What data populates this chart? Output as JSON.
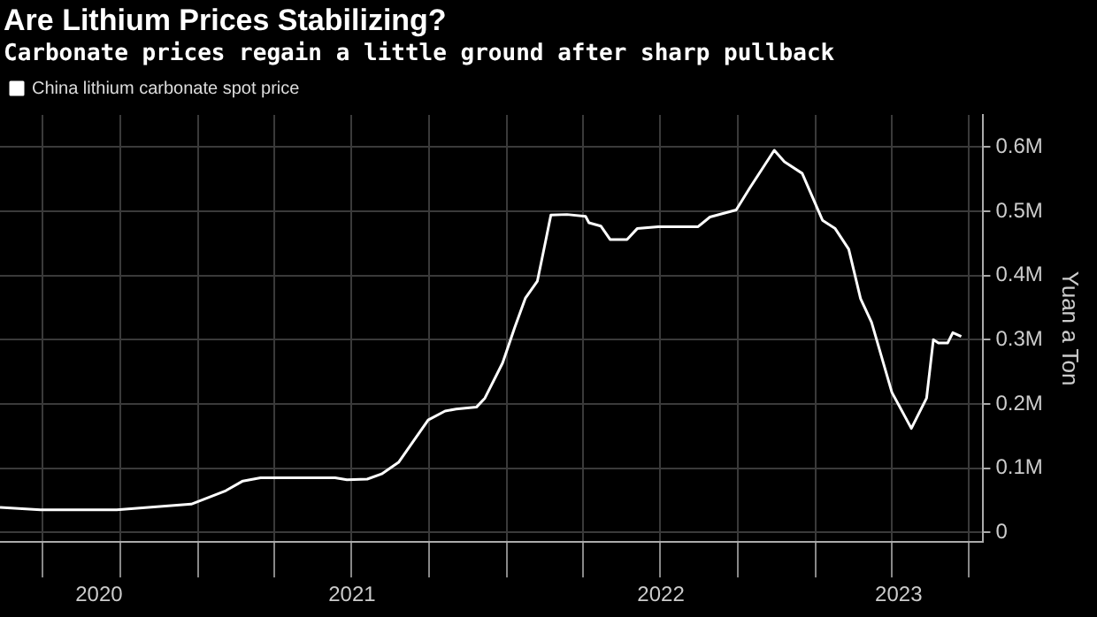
{
  "chart_data": {
    "type": "line",
    "title": "Are Lithium Prices Stabilizing?",
    "subtitle": "Carbonate prices regain a little ground after sharp pullback",
    "ylabel": "Yuan a Ton",
    "legend": "top left",
    "grid": true,
    "marker": "none",
    "line_style": "solid",
    "xlim": [
      "2020-05-12",
      "2023-07-18"
    ],
    "xticks": [
      {
        "value": "2020-07-01",
        "label": null
      },
      {
        "value": "2020-09-06",
        "label": "2020"
      },
      {
        "value": "2020-10-01",
        "label": null
      },
      {
        "value": "2021-01-01",
        "label": null
      },
      {
        "value": "2021-04-01",
        "label": null
      },
      {
        "value": "2021-07-02",
        "label": "2021"
      },
      {
        "value": "2021-07-01",
        "label": null
      },
      {
        "value": "2021-10-01",
        "label": null
      },
      {
        "value": "2022-01-01",
        "label": null
      },
      {
        "value": "2022-04-01",
        "label": null
      },
      {
        "value": "2022-07-02",
        "label": "2022"
      },
      {
        "value": "2022-07-01",
        "label": null
      },
      {
        "value": "2022-10-01",
        "label": null
      },
      {
        "value": "2023-01-01",
        "label": null
      },
      {
        "value": "2023-04-01",
        "label": null
      },
      {
        "value": "2023-04-09",
        "label": "2023"
      },
      {
        "value": "2023-07-01",
        "label": null
      }
    ],
    "ylim": [
      -15000,
      650000
    ],
    "yticks": [
      {
        "value": 0,
        "label": "0"
      },
      {
        "value": 100000,
        "label": "0.1M"
      },
      {
        "value": 200000,
        "label": "0.2M"
      },
      {
        "value": 300000,
        "label": "0.3M"
      },
      {
        "value": 400000,
        "label": "0.4M"
      },
      {
        "value": 500000,
        "label": "0.5M"
      },
      {
        "value": 600000,
        "label": "0.6M"
      }
    ],
    "series": [
      {
        "name": "China lithium carbonate spot price",
        "color": "#ffffff",
        "x": [
          "2020-05-12",
          "2020-06-29",
          "2020-09-27",
          "2020-12-24",
          "2021-02-03",
          "2021-02-23",
          "2021-03-16",
          "2021-06-12",
          "2021-06-26",
          "2021-07-20",
          "2021-08-06",
          "2021-08-26",
          "2021-09-30",
          "2021-10-20",
          "2021-11-02",
          "2021-11-26",
          "2021-12-06",
          "2021-12-27",
          "2022-01-10",
          "2022-01-23",
          "2022-02-06",
          "2022-02-16",
          "2022-02-22",
          "2022-03-13",
          "2022-04-04",
          "2022-04-08",
          "2022-04-22",
          "2022-05-03",
          "2022-05-23",
          "2022-06-04",
          "2022-06-29",
          "2022-08-15",
          "2022-08-29",
          "2022-09-29",
          "2022-10-15",
          "2022-11-13",
          "2022-11-25",
          "2022-12-16",
          "2023-01-09",
          "2023-01-24",
          "2023-02-09",
          "2023-02-23",
          "2023-03-08",
          "2023-04-01",
          "2023-04-24",
          "2023-05-12",
          "2023-05-20",
          "2023-05-26",
          "2023-06-06",
          "2023-06-12",
          "2023-06-22"
        ],
        "values": [
          39000,
          35000,
          35000,
          44000,
          65000,
          80000,
          85000,
          85000,
          82000,
          83000,
          91000,
          109000,
          175000,
          189000,
          192000,
          195000,
          209000,
          264000,
          318000,
          365000,
          391000,
          455000,
          494000,
          495000,
          492000,
          482000,
          477000,
          456000,
          456000,
          473000,
          476000,
          476000,
          491000,
          502000,
          536000,
          595000,
          577000,
          559000,
          486000,
          473000,
          441000,
          364000,
          327000,
          218000,
          162000,
          209000,
          300000,
          295000,
          295000,
          311000,
          305000
        ]
      }
    ]
  }
}
